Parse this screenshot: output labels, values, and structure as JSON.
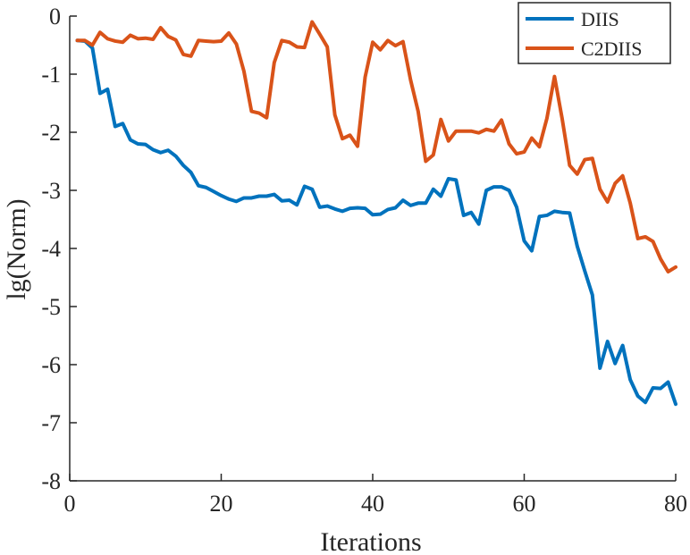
{
  "chart_data": {
    "type": "line",
    "title": "",
    "xlabel": "Iterations",
    "ylabel": "lg(Norm)",
    "xlim": [
      0,
      80
    ],
    "ylim": [
      -8,
      0
    ],
    "xticks": [
      "0",
      "20",
      "40",
      "60",
      "80"
    ],
    "yticks": [
      "0",
      "-1",
      "-2",
      "-3",
      "-4",
      "-5",
      "-6",
      "-7",
      "-8"
    ],
    "grid": false,
    "legend_position": "top-right",
    "series": [
      {
        "name": "DIIS",
        "color": "#0072BD",
        "x": [
          1,
          2,
          3,
          4,
          5,
          6,
          7,
          8,
          9,
          10,
          11,
          12,
          13,
          14,
          15,
          16,
          17,
          18,
          19,
          20,
          21,
          22,
          23,
          24,
          25,
          26,
          27,
          28,
          29,
          30,
          31,
          32,
          33,
          34,
          35,
          36,
          37,
          38,
          39,
          40,
          41,
          42,
          43,
          44,
          45,
          46,
          47,
          48,
          49,
          50,
          51,
          52,
          53,
          54,
          55,
          56,
          57,
          58,
          59,
          60,
          61,
          62,
          63,
          64,
          65,
          66,
          67,
          68,
          69,
          70,
          71,
          72,
          73,
          74,
          75,
          76,
          77,
          78,
          79,
          80
        ],
        "y": [
          -0.42,
          -0.43,
          -0.55,
          -1.33,
          -1.26,
          -1.9,
          -1.85,
          -2.13,
          -2.2,
          -2.21,
          -2.3,
          -2.35,
          -2.31,
          -2.41,
          -2.57,
          -2.69,
          -2.92,
          -2.95,
          -3.02,
          -3.09,
          -3.15,
          -3.19,
          -3.13,
          -3.13,
          -3.1,
          -3.1,
          -3.07,
          -3.18,
          -3.17,
          -3.25,
          -2.93,
          -2.98,
          -3.29,
          -3.27,
          -3.32,
          -3.36,
          -3.31,
          -3.3,
          -3.31,
          -3.42,
          -3.41,
          -3.33,
          -3.3,
          -3.17,
          -3.26,
          -3.22,
          -3.22,
          -2.98,
          -3.1,
          -2.8,
          -2.82,
          -3.43,
          -3.38,
          -3.58,
          -3.0,
          -2.94,
          -2.94,
          -3.0,
          -3.29,
          -3.87,
          -4.04,
          -3.45,
          -3.43,
          -3.36,
          -3.38,
          -3.39,
          -3.96,
          -4.39,
          -4.8,
          -6.06,
          -5.6,
          -5.98,
          -5.67,
          -6.26,
          -6.54,
          -6.65,
          -6.4,
          -6.41,
          -6.3,
          -6.68
        ]
      },
      {
        "name": "C2DIIS",
        "color": "#D95319",
        "x": [
          1,
          2,
          3,
          4,
          5,
          6,
          7,
          8,
          9,
          10,
          11,
          12,
          13,
          14,
          15,
          16,
          17,
          18,
          19,
          20,
          21,
          22,
          23,
          24,
          25,
          26,
          27,
          28,
          29,
          30,
          31,
          32,
          33,
          34,
          35,
          36,
          37,
          38,
          39,
          40,
          41,
          42,
          43,
          44,
          45,
          46,
          47,
          48,
          49,
          50,
          51,
          52,
          53,
          54,
          55,
          56,
          57,
          58,
          59,
          60,
          61,
          62,
          63,
          64,
          65,
          66,
          67,
          68,
          69,
          70,
          71,
          72,
          73,
          74,
          75,
          76,
          77,
          78,
          79,
          80
        ],
        "y": [
          -0.42,
          -0.42,
          -0.5,
          -0.28,
          -0.39,
          -0.43,
          -0.45,
          -0.33,
          -0.39,
          -0.38,
          -0.4,
          -0.2,
          -0.35,
          -0.41,
          -0.66,
          -0.69,
          -0.42,
          -0.43,
          -0.44,
          -0.43,
          -0.29,
          -0.48,
          -0.95,
          -1.64,
          -1.67,
          -1.75,
          -0.8,
          -0.42,
          -0.45,
          -0.53,
          -0.54,
          -0.1,
          -0.31,
          -0.53,
          -1.7,
          -2.11,
          -2.05,
          -2.24,
          -1.05,
          -0.45,
          -0.58,
          -0.42,
          -0.51,
          -0.44,
          -1.1,
          -1.64,
          -2.5,
          -2.39,
          -1.78,
          -2.15,
          -1.98,
          -1.98,
          -1.98,
          -2.01,
          -1.95,
          -1.98,
          -1.79,
          -2.2,
          -2.37,
          -2.34,
          -2.1,
          -2.25,
          -1.76,
          -1.04,
          -1.76,
          -2.57,
          -2.72,
          -2.47,
          -2.45,
          -2.98,
          -3.2,
          -2.88,
          -2.75,
          -3.22,
          -3.83,
          -3.8,
          -3.88,
          -4.18,
          -4.4,
          -4.32
        ]
      }
    ]
  }
}
